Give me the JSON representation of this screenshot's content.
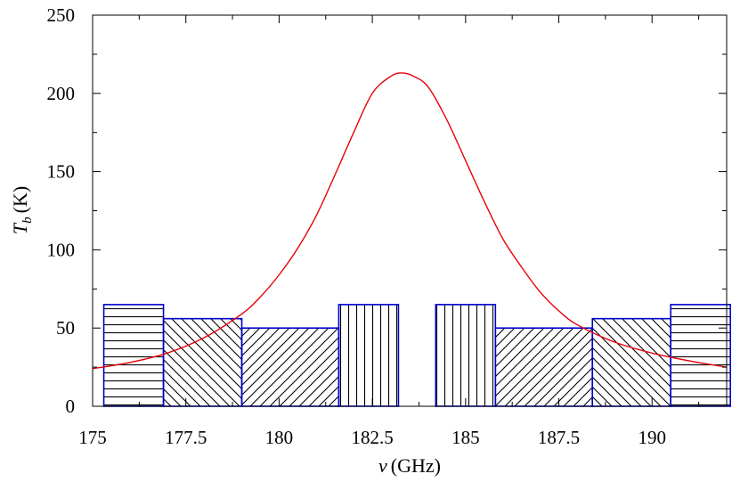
{
  "chart_data": {
    "type": "bar",
    "xlabel_symbol": "ν",
    "xlabel_unit": "(GHz)",
    "ylabel_symbol": "T",
    "ylabel_sub": "b",
    "ylabel_unit": "(K)",
    "xlim": [
      175,
      192
    ],
    "ylim": [
      0,
      250
    ],
    "xticks": [
      175,
      177.5,
      180,
      182.5,
      185,
      187.5,
      190
    ],
    "xtick_labels": [
      "175",
      "177.5",
      "180",
      "182.5",
      "185",
      "187.5",
      "190"
    ],
    "yticks": [
      0,
      50,
      100,
      150,
      200,
      250
    ],
    "ytick_labels": [
      "0",
      "50",
      "100",
      "150",
      "200",
      "250"
    ],
    "grid": false,
    "bar_outline_color": "#0000cc",
    "curve_color": "#e8000b",
    "bars": [
      {
        "x0": 175.3,
        "x1": 176.9,
        "value": 65,
        "pattern": "horizontal"
      },
      {
        "x0": 176.9,
        "x1": 179.0,
        "value": 56,
        "pattern": "diagonal-down"
      },
      {
        "x0": 179.0,
        "x1": 181.6,
        "value": 50,
        "pattern": "diagonal-up"
      },
      {
        "x0": 181.6,
        "x1": 183.2,
        "value": 65,
        "pattern": "vertical"
      },
      {
        "x0": 184.2,
        "x1": 185.8,
        "value": 65,
        "pattern": "vertical"
      },
      {
        "x0": 185.8,
        "x1": 188.4,
        "value": 50,
        "pattern": "diagonal-up"
      },
      {
        "x0": 188.4,
        "x1": 190.5,
        "value": 56,
        "pattern": "diagonal-down"
      },
      {
        "x0": 190.5,
        "x1": 192.1,
        "value": 65,
        "pattern": "horizontal"
      }
    ],
    "series": [
      {
        "type": "line",
        "x": [
          175,
          176,
          177,
          178,
          179,
          179.5,
          180,
          180.5,
          181,
          181.5,
          182,
          182.5,
          183,
          183.3,
          183.6,
          184,
          184.5,
          185,
          185.5,
          186,
          186.5,
          187,
          187.5,
          188,
          189,
          190,
          191,
          192
        ],
        "y": [
          24,
          28,
          34,
          44,
          59,
          70,
          84,
          101,
          122,
          148,
          175,
          200,
          211,
          213,
          211,
          204,
          183,
          157,
          131,
          107,
          89,
          73,
          61,
          52,
          41,
          34,
          29,
          25
        ]
      }
    ]
  }
}
